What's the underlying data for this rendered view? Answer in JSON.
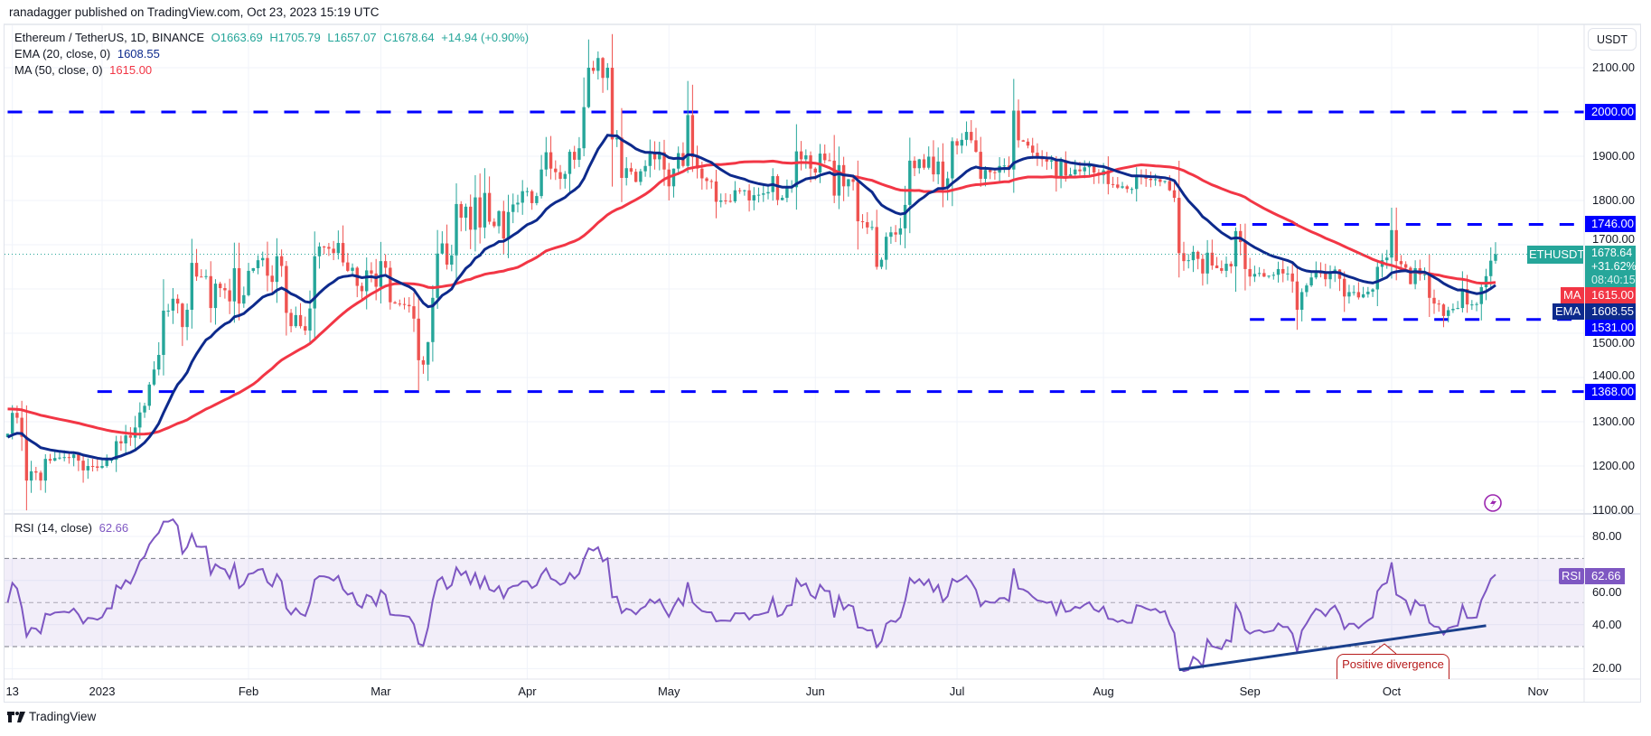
{
  "publisher_line": "ranadagger published on TradingView.com, Oct 23, 2023 15:19 UTC",
  "legend": {
    "symbol": "Ethereum / TetherUS, 1D, BINANCE",
    "open": "O1663.69",
    "high": "H1705.79",
    "low": "L1657.07",
    "close": "C1678.64",
    "change": "+14.94 (+0.90%)",
    "ema_label": "EMA (20, close, 0)",
    "ema_value": "1608.55",
    "ma_label": "MA (50, close, 0)",
    "ma_value": "1615.00",
    "rsi_label": "RSI (14, close)",
    "rsi_value": "62.66"
  },
  "currency_button": "USDT",
  "price_axis_labels": [
    "2100.00",
    "1900.00",
    "1800.00",
    "1700.00",
    "1500.00",
    "1400.00",
    "1300.00",
    "1200.00",
    "1100.00"
  ],
  "rsi_axis_labels": [
    "80.00",
    "60.00",
    "40.00",
    "20.00"
  ],
  "time_axis_labels": [
    {
      "label": "13",
      "date": "2022-12-13"
    },
    {
      "label": "2023",
      "date": "2023-01-01"
    },
    {
      "label": "Feb",
      "date": "2023-02-01"
    },
    {
      "label": "Mar",
      "date": "2023-03-01"
    },
    {
      "label": "Apr",
      "date": "2023-04-01"
    },
    {
      "label": "May",
      "date": "2023-05-01"
    },
    {
      "label": "Jun",
      "date": "2023-06-01"
    },
    {
      "label": "Jul",
      "date": "2023-07-01"
    },
    {
      "label": "Aug",
      "date": "2023-08-01"
    },
    {
      "label": "Sep",
      "date": "2023-09-01"
    },
    {
      "label": "Oct",
      "date": "2023-10-01"
    },
    {
      "label": "Nov",
      "date": "2023-11-01"
    }
  ],
  "horizontal_levels": [
    {
      "label": "2000.00",
      "price": 2000,
      "from": "2022-12-12"
    },
    {
      "label": "1746.00",
      "price": 1746,
      "from": "2023-08-26"
    },
    {
      "label": "1531.00",
      "price": 1531,
      "from": "2023-09-01"
    },
    {
      "label": "1368.00",
      "price": 1368,
      "from": "2022-12-31"
    }
  ],
  "price_tags": {
    "symbol": "ETHUSDT",
    "last": "1678.64",
    "change_pct": "+31.62%",
    "countdown": "08:40:15",
    "ma_label": "MA",
    "ma": "1615.00",
    "ema_label": "EMA",
    "ema": "1608.55",
    "rsi_label": "RSI",
    "rsi": "62.66"
  },
  "annotation": {
    "text": "Positive divergence",
    "line": {
      "from": {
        "date": "2023-08-17",
        "rsi": 19.5
      },
      "to": {
        "date": "2023-10-21",
        "rsi": 39.5
      }
    }
  },
  "footer_logo": "TradingView",
  "colors": {
    "up": "#26a69a",
    "down": "#ef5350",
    "ema": "#0d2a8c",
    "ma": "#f23645",
    "levels": "#0000ff",
    "rsi": "#7e57c2",
    "annotation": "#b71c1c"
  },
  "icons": {
    "alert": "lightning-circle-icon",
    "logo": "tradingview-logo-icon"
  },
  "chart_data": {
    "type": "candlestick",
    "interval": "1D",
    "x_start": "2022-12-12",
    "y_range": [
      1100,
      2150
    ],
    "rsi_range": [
      15,
      90
    ],
    "rsi_bands": [
      30,
      50,
      70
    ],
    "grid": true,
    "last_candle": {
      "open": 1663.69,
      "high": 1705.79,
      "low": 1657.07,
      "close": 1678.64
    },
    "close": [
      1273,
      1320,
      1309,
      1266,
      1167,
      1188,
      1185,
      1167,
      1216,
      1212,
      1218,
      1219,
      1220,
      1218,
      1226,
      1212,
      1190,
      1200,
      1199,
      1196,
      1200,
      1214,
      1214,
      1256,
      1251,
      1269,
      1264,
      1287,
      1321,
      1336,
      1384,
      1418,
      1451,
      1551,
      1551,
      1578,
      1567,
      1514,
      1553,
      1659,
      1628,
      1627,
      1629,
      1557,
      1612,
      1602,
      1597,
      1572,
      1647,
      1567,
      1586,
      1641,
      1647,
      1665,
      1670,
      1630,
      1616,
      1674,
      1652,
      1546,
      1516,
      1541,
      1516,
      1506,
      1556,
      1674,
      1696,
      1695,
      1691,
      1681,
      1704,
      1660,
      1641,
      1648,
      1607,
      1595,
      1642,
      1635,
      1605,
      1663,
      1648,
      1570,
      1567,
      1566,
      1564,
      1561,
      1533,
      1439,
      1429,
      1480,
      1580,
      1680,
      1703,
      1655,
      1676,
      1792,
      1761,
      1786,
      1734,
      1807,
      1739,
      1817,
      1752,
      1742,
      1776,
      1714,
      1774,
      1791,
      1795,
      1821,
      1821,
      1794,
      1810,
      1870,
      1909,
      1872,
      1864,
      1849,
      1860,
      1910,
      1892,
      1918,
      2011,
      2100,
      2093,
      2122,
      2077,
      2100,
      1938,
      1942,
      1851,
      1873,
      1865,
      1842,
      1866,
      1878,
      1909,
      1893,
      1909,
      1870,
      1832,
      1872,
      1907,
      1878,
      1993,
      1898,
      1872,
      1850,
      1844,
      1843,
      1797,
      1800,
      1799,
      1798,
      1823,
      1822,
      1823,
      1800,
      1812,
      1813,
      1816,
      1819,
      1855,
      1801,
      1806,
      1828,
      1830,
      1911,
      1893,
      1902,
      1872,
      1863,
      1906,
      1891,
      1890,
      1811,
      1880,
      1832,
      1848,
      1842,
      1753,
      1751,
      1739,
      1740,
      1650,
      1666,
      1718,
      1728,
      1723,
      1737,
      1790,
      1890,
      1873,
      1893,
      1874,
      1899,
      1859,
      1888,
      1828,
      1850,
      1934,
      1924,
      1937,
      1955,
      1936,
      1910,
      1849,
      1869,
      1864,
      1863,
      1878,
      1879,
      1870,
      2003,
      1936,
      1933,
      1924,
      1908,
      1896,
      1893,
      1888,
      1891,
      1852,
      1891,
      1856,
      1859,
      1870,
      1866,
      1875,
      1881,
      1863,
      1857,
      1868,
      1837,
      1836,
      1829,
      1832,
      1826,
      1826,
      1855,
      1853,
      1849,
      1846,
      1848,
      1842,
      1844,
      1823,
      1806,
      1681,
      1663,
      1665,
      1684,
      1668,
      1635,
      1682,
      1653,
      1647,
      1641,
      1657,
      1651,
      1731,
      1706,
      1645,
      1628,
      1634,
      1636,
      1628,
      1630,
      1632,
      1645,
      1635,
      1635,
      1617,
      1553,
      1593,
      1608,
      1626,
      1641,
      1635,
      1622,
      1636,
      1644,
      1623,
      1583,
      1593,
      1593,
      1581,
      1588,
      1594,
      1599,
      1650,
      1665,
      1671,
      1733,
      1663,
      1656,
      1648,
      1611,
      1647,
      1633,
      1633,
      1580,
      1567,
      1565,
      1539,
      1552,
      1555,
      1557,
      1600,
      1565,
      1565,
      1566,
      1604,
      1629,
      1664,
      1678.64
    ]
  }
}
